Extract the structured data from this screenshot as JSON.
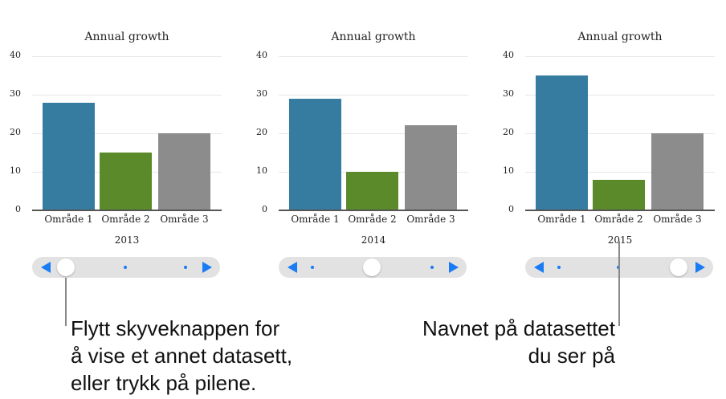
{
  "chart_data": [
    {
      "type": "bar",
      "title": "Annual growth",
      "categories": [
        "Område 1",
        "Område 2",
        "Område 3"
      ],
      "values": [
        28,
        15,
        20
      ],
      "dataset_label": "2013",
      "ylim": [
        0,
        40
      ],
      "yticks": [
        0,
        10,
        20,
        30,
        40
      ],
      "grid": true,
      "slider_position": 0
    },
    {
      "type": "bar",
      "title": "Annual growth",
      "categories": [
        "Område 1",
        "Område 2",
        "Område 3"
      ],
      "values": [
        29,
        10,
        22
      ],
      "dataset_label": "2014",
      "ylim": [
        0,
        40
      ],
      "yticks": [
        0,
        10,
        20,
        30,
        40
      ],
      "grid": true,
      "slider_position": 1
    },
    {
      "type": "bar",
      "title": "Annual growth",
      "categories": [
        "Område 1",
        "Område 2",
        "Område 3"
      ],
      "values": [
        35,
        8,
        20
      ],
      "dataset_label": "2015",
      "ylim": [
        0,
        40
      ],
      "yticks": [
        0,
        10,
        20,
        30,
        40
      ],
      "grid": true,
      "slider_position": 2
    }
  ],
  "colors": {
    "bars": [
      "#357ca0",
      "#5a8a2a",
      "#8c8c8c"
    ],
    "accent": "#1a7cf5"
  },
  "slider": {
    "dataset_count": 3
  },
  "callouts": {
    "left": [
      "Flytt skyveknappen for",
      "å vise et annet datasett,",
      "eller trykk på pilene."
    ],
    "right": [
      "Navnet på datasettet",
      "du ser på"
    ]
  }
}
